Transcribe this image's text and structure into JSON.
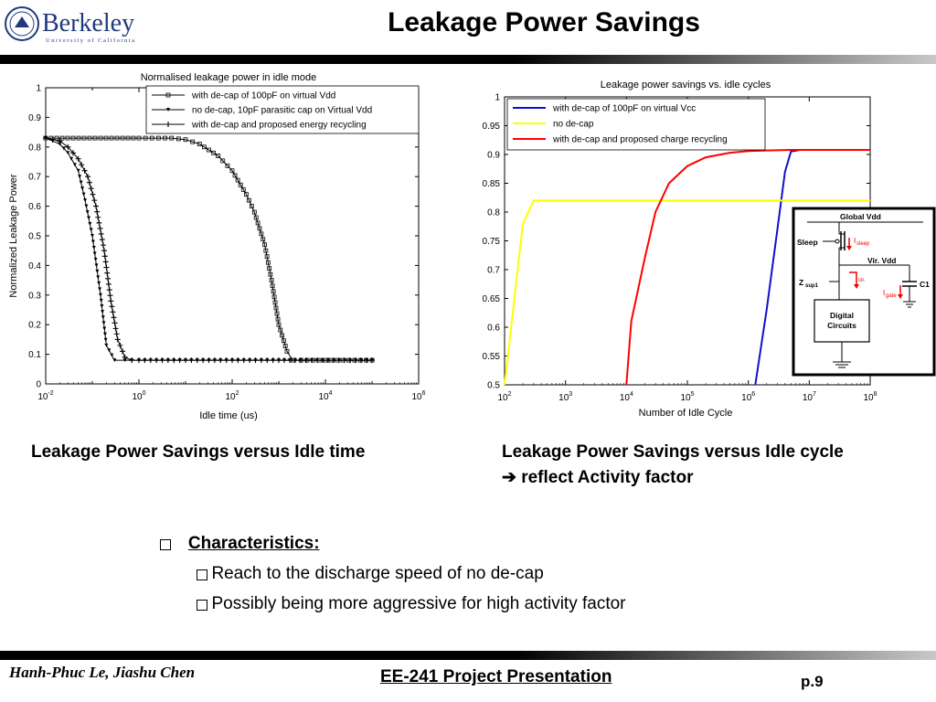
{
  "header": {
    "logo_text": "Berkeley",
    "logo_subtext": "University of California",
    "title": "Leakage Power Savings"
  },
  "chart_data": [
    {
      "type": "line",
      "title": "Normalised leakage power in idle mode",
      "xlabel": "Idle time (us)",
      "ylabel": "Normalized Leakage Power",
      "xscale": "log",
      "xlim": [
        0.01,
        1000000
      ],
      "ylim": [
        0,
        1
      ],
      "xtick_labels": [
        "10-2",
        "100",
        "102",
        "104",
        "106"
      ],
      "ytick_labels": [
        "0",
        "0.1",
        "0.2",
        "0.3",
        "0.4",
        "0.5",
        "0.6",
        "0.7",
        "0.8",
        "0.9",
        "1"
      ],
      "grid": false,
      "legend": "top",
      "series": [
        {
          "name": "with de-cap of 100pF on virtual Vdd",
          "color": "#000000",
          "marker": "square",
          "x": [
            0.01,
            1,
            5,
            10,
            20,
            50,
            100,
            200,
            300,
            500,
            700,
            1000,
            1500,
            2000,
            3000,
            10000,
            100000
          ],
          "y": [
            0.83,
            0.83,
            0.83,
            0.825,
            0.81,
            0.77,
            0.72,
            0.64,
            0.58,
            0.47,
            0.35,
            0.2,
            0.11,
            0.08,
            0.08,
            0.08,
            0.08
          ]
        },
        {
          "name": "no de-cap, 10pF parasitic cap on Virtual Vdd",
          "color": "#000000",
          "marker": "triangle",
          "x": [
            0.01,
            0.02,
            0.03,
            0.05,
            0.07,
            0.1,
            0.15,
            0.2,
            0.3,
            0.5,
            1,
            10,
            100,
            1000,
            100000
          ],
          "y": [
            0.83,
            0.81,
            0.78,
            0.72,
            0.62,
            0.5,
            0.3,
            0.13,
            0.08,
            0.08,
            0.08,
            0.08,
            0.08,
            0.08,
            0.08
          ]
        },
        {
          "name": "with de-cap and proposed energy recycling",
          "color": "#000000",
          "marker": "plus",
          "x": [
            0.01,
            0.02,
            0.03,
            0.05,
            0.08,
            0.12,
            0.18,
            0.25,
            0.35,
            0.5,
            0.7,
            1,
            10,
            100,
            1000,
            100000
          ],
          "y": [
            0.83,
            0.82,
            0.8,
            0.76,
            0.7,
            0.6,
            0.45,
            0.28,
            0.15,
            0.09,
            0.08,
            0.08,
            0.08,
            0.08,
            0.08,
            0.08
          ]
        }
      ]
    },
    {
      "type": "line",
      "title": "Leakage power savings vs. idle cycles",
      "xlabel": "Number of Idle Cycle",
      "ylabel": "",
      "xscale": "log",
      "xlim": [
        100,
        100000000
      ],
      "ylim": [
        0.5,
        1
      ],
      "xtick_labels": [
        "102",
        "103",
        "104",
        "105",
        "106",
        "107",
        "108"
      ],
      "ytick_labels": [
        "0.5",
        "0.55",
        "0.6",
        "0.65",
        "0.7",
        "0.75",
        "0.8",
        "0.85",
        "0.9",
        "0.95",
        "1"
      ],
      "grid": false,
      "legend": "top",
      "series": [
        {
          "name": "with de-cap of 100pF on virtual Vcc",
          "color": "#1010cc",
          "x": [
            1300000,
            2000000,
            3000000,
            4000000,
            5000000,
            7000000,
            100000000
          ],
          "y": [
            0.5,
            0.63,
            0.77,
            0.87,
            0.905,
            0.908,
            0.908
          ]
        },
        {
          "name": "no de-cap",
          "color": "#ffff00",
          "x": [
            100,
            200,
            300,
            100000000
          ],
          "y": [
            0.5,
            0.78,
            0.82,
            0.82
          ]
        },
        {
          "name": "with de-cap and proposed charge recycling",
          "color": "#ff0000",
          "x": [
            10000,
            12000,
            20000,
            30000,
            50000,
            100000,
            200000,
            500000,
            1000000,
            2000000,
            5000000,
            100000000
          ],
          "y": [
            0.5,
            0.61,
            0.72,
            0.8,
            0.85,
            0.88,
            0.895,
            0.903,
            0.906,
            0.907,
            0.908,
            0.908
          ]
        }
      ]
    }
  ],
  "circuit": {
    "global_vdd": "Global Vdd",
    "sleep": "Sleep",
    "i_sleep": "I",
    "i_sleep_sub": "sleep",
    "vir_vdd": "Vir. Vdd",
    "z_sup": "Z",
    "z_sup_sub": "sup1",
    "i_cir": "I",
    "i_cir_sub": "cir.",
    "c1": "C1",
    "i_gate": "I",
    "i_gate_sub": "gate",
    "digital_line1": "Digital",
    "digital_line2": "Circuits"
  },
  "captions": {
    "left": "Leakage Power Savings versus Idle time",
    "right_line1": "Leakage Power Savings versus Idle cycle",
    "right_arrow": "➔",
    "right_line2": "reflect Activity factor"
  },
  "bullets": {
    "heading": "Characteristics:",
    "items": [
      "Reach to the discharge speed of no de-cap",
      "Possibly being more aggressive for high activity factor"
    ]
  },
  "footer": {
    "authors": "Hanh-Phuc Le, Jiashu Chen",
    "center": "EE-241 Project Presentation",
    "page": "p.9"
  }
}
